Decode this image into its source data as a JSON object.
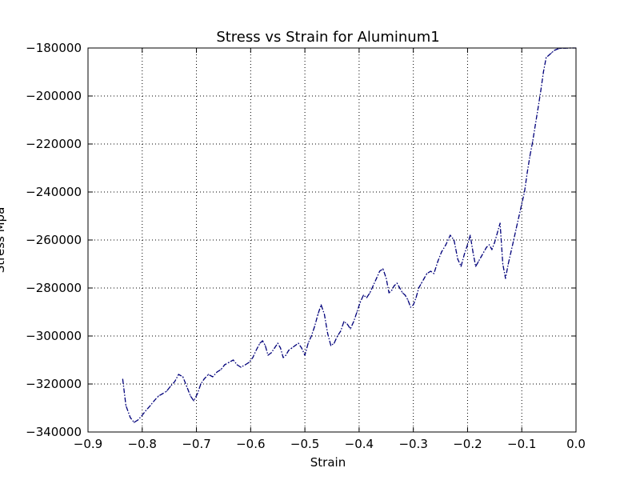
{
  "chart_data": {
    "type": "line",
    "title": "Stress vs Strain for Aluminum1",
    "xlabel": "Strain",
    "ylabel": "Stress Mpa",
    "xlim": [
      -0.9,
      0.0
    ],
    "ylim": [
      -340000,
      -180000
    ],
    "x_ticks": [
      -0.9,
      -0.8,
      -0.7,
      -0.6,
      -0.5,
      -0.4,
      -0.3,
      -0.2,
      -0.1,
      0.0
    ],
    "x_tick_labels": [
      "−0.9",
      "−0.8",
      "−0.7",
      "−0.6",
      "−0.5",
      "−0.4",
      "−0.3",
      "−0.2",
      "−0.1",
      "0.0"
    ],
    "y_ticks": [
      -180000,
      -200000,
      -220000,
      -240000,
      -260000,
      -280000,
      -300000,
      -320000,
      -340000
    ],
    "y_tick_labels": [
      "−180000",
      "−200000",
      "−220000",
      "−240000",
      "−260000",
      "−280000",
      "−300000",
      "−320000",
      "−340000"
    ],
    "grid": true,
    "colors": {
      "line": "#00007a",
      "grid": "#000000",
      "axes": "#000000"
    },
    "series": [
      {
        "line_style": "dash-dot",
        "x": [
          -0.836,
          -0.83,
          -0.822,
          -0.815,
          -0.808,
          -0.8,
          -0.793,
          -0.785,
          -0.778,
          -0.77,
          -0.762,
          -0.755,
          -0.748,
          -0.74,
          -0.733,
          -0.725,
          -0.718,
          -0.711,
          -0.705,
          -0.698,
          -0.692,
          -0.686,
          -0.678,
          -0.67,
          -0.662,
          -0.655,
          -0.648,
          -0.64,
          -0.632,
          -0.625,
          -0.618,
          -0.61,
          -0.603,
          -0.596,
          -0.59,
          -0.583,
          -0.578,
          -0.573,
          -0.568,
          -0.562,
          -0.556,
          -0.55,
          -0.545,
          -0.54,
          -0.535,
          -0.53,
          -0.524,
          -0.518,
          -0.512,
          -0.506,
          -0.5,
          -0.494,
          -0.488,
          -0.482,
          -0.476,
          -0.47,
          -0.464,
          -0.458,
          -0.452,
          -0.446,
          -0.44,
          -0.434,
          -0.428,
          -0.422,
          -0.416,
          -0.41,
          -0.404,
          -0.398,
          -0.392,
          -0.386,
          -0.38,
          -0.374,
          -0.368,
          -0.362,
          -0.356,
          -0.35,
          -0.345,
          -0.34,
          -0.335,
          -0.33,
          -0.325,
          -0.32,
          -0.315,
          -0.31,
          -0.305,
          -0.3,
          -0.295,
          -0.29,
          -0.285,
          -0.28,
          -0.275,
          -0.268,
          -0.262,
          -0.255,
          -0.248,
          -0.24,
          -0.232,
          -0.225,
          -0.218,
          -0.212,
          -0.206,
          -0.2,
          -0.195,
          -0.19,
          -0.185,
          -0.18,
          -0.175,
          -0.17,
          -0.165,
          -0.16,
          -0.155,
          -0.15,
          -0.145,
          -0.14,
          -0.135,
          -0.13,
          -0.125,
          -0.12,
          -0.115,
          -0.11,
          -0.105,
          -0.1,
          -0.095,
          -0.09,
          -0.085,
          -0.08,
          -0.075,
          -0.07,
          -0.065,
          -0.06,
          -0.055,
          -0.05,
          -0.045,
          -0.04,
          -0.035,
          -0.03,
          -0.025,
          -0.02,
          -0.015,
          -0.01,
          -0.005,
          0.0
        ],
        "y": [
          -318000,
          -329000,
          -334000,
          -336000,
          -335000,
          -333000,
          -331000,
          -329000,
          -327000,
          -325000,
          -324000,
          -323000,
          -321000,
          -319000,
          -316000,
          -317000,
          -321000,
          -325000,
          -327000,
          -324000,
          -320000,
          -318000,
          -316000,
          -317000,
          -315000,
          -314000,
          -312000,
          -311000,
          -310000,
          -312000,
          -313000,
          -312000,
          -311000,
          -309000,
          -306000,
          -303000,
          -302000,
          -304000,
          -308000,
          -307000,
          -305000,
          -303000,
          -305000,
          -309000,
          -308000,
          -306000,
          -305000,
          -304000,
          -303000,
          -305000,
          -308000,
          -303000,
          -300000,
          -296000,
          -291000,
          -287000,
          -291000,
          -299000,
          -304000,
          -303000,
          -300000,
          -298000,
          -294000,
          -295000,
          -297000,
          -294000,
          -290000,
          -286000,
          -283000,
          -284000,
          -282000,
          -279000,
          -276000,
          -273000,
          -272000,
          -276000,
          -282000,
          -281000,
          -279000,
          -278000,
          -280000,
          -282000,
          -283000,
          -285000,
          -288000,
          -287000,
          -284000,
          -280000,
          -278000,
          -276000,
          -274000,
          -273000,
          -274000,
          -269000,
          -265000,
          -262000,
          -258000,
          -260000,
          -268000,
          -271000,
          -266000,
          -262000,
          -258000,
          -265000,
          -271000,
          -269000,
          -267000,
          -265000,
          -263000,
          -262000,
          -264000,
          -261000,
          -257000,
          -253000,
          -270000,
          -276000,
          -270000,
          -265000,
          -260000,
          -255000,
          -250000,
          -245000,
          -240000,
          -232000,
          -225000,
          -219000,
          -212000,
          -205000,
          -198000,
          -190000,
          -184000,
          -183000,
          -182000,
          -181000,
          -180500,
          -180200,
          -180100,
          -180050,
          -180020,
          -180010,
          -180000,
          -180000
        ]
      }
    ]
  }
}
